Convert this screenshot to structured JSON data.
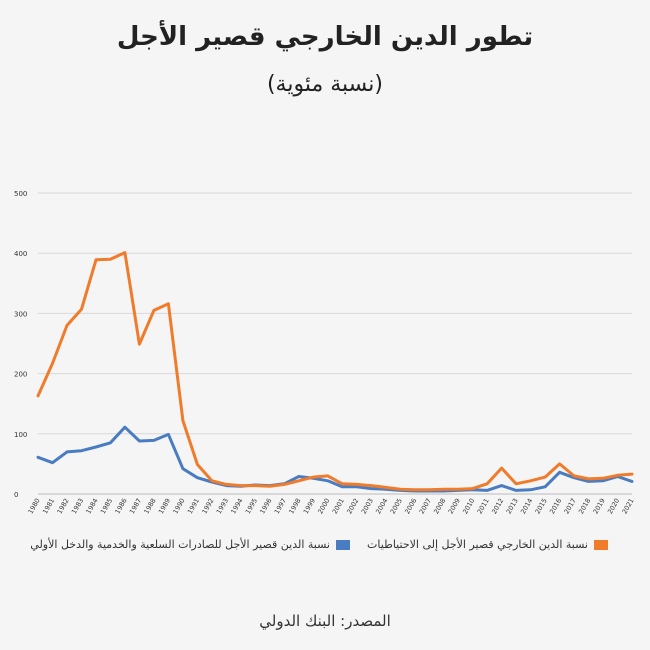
{
  "title": "تطور الدين الخارجي قصير الأجل",
  "subtitle": "(نسبة مئوية)",
  "source": "المصدر: البنك الدولي",
  "colors": {
    "series1": "#4a7cc1",
    "series2": "#f07b2b",
    "grid": "#d8d8d8",
    "axis": "#bbbbbb"
  },
  "chart_data": {
    "type": "line",
    "title": "تطور الدين الخارجي قصير الأجل",
    "subtitle": "(نسبة مئوية)",
    "xlabel": "",
    "ylabel": "",
    "ylim": [
      0,
      500
    ],
    "yticks": [
      "0",
      "100",
      "200",
      "300",
      "400",
      "500"
    ],
    "grid": true,
    "legend_position": "bottom",
    "x": [
      "1980",
      "1981",
      "1982",
      "1983",
      "1984",
      "1985",
      "1986",
      "1987",
      "1988",
      "1989",
      "1990",
      "1991",
      "1992",
      "1993",
      "1994",
      "1995",
      "1996",
      "1997",
      "1998",
      "1999",
      "2000",
      "2001",
      "2002",
      "2003",
      "2004",
      "2005",
      "2006",
      "2007",
      "2008",
      "2009",
      "2010",
      "2011",
      "2012",
      "2013",
      "2014",
      "2015",
      "2016",
      "2017",
      "2018",
      "2019",
      "2020",
      "2021"
    ],
    "series": [
      {
        "name": "نسبة الدين قصير الأجل للصادرات السلعية والخدمية والدخل الأولي",
        "color": "#4a7cc1",
        "values": [
          61,
          52,
          70,
          72,
          78,
          85,
          111,
          88,
          89,
          99,
          42,
          27,
          20,
          14,
          13,
          15,
          14,
          17,
          29,
          26,
          22,
          12,
          12,
          9,
          8,
          6,
          5,
          5,
          5,
          6,
          7,
          6,
          14,
          6,
          7,
          12,
          36,
          27,
          21,
          22,
          29,
          21
        ]
      },
      {
        "name": "نسبة الدين الخارجي قصير الأجل إلى الاحتياطيات",
        "color": "#f07b2b",
        "values": [
          163,
          217,
          280,
          307,
          389,
          390,
          401,
          249,
          305,
          316,
          122,
          49,
          22,
          16,
          14,
          14,
          13,
          16,
          22,
          28,
          30,
          17,
          16,
          14,
          11,
          8,
          7,
          7,
          8,
          8,
          9,
          17,
          43,
          17,
          22,
          28,
          50,
          30,
          25,
          26,
          31,
          33
        ]
      }
    ]
  }
}
